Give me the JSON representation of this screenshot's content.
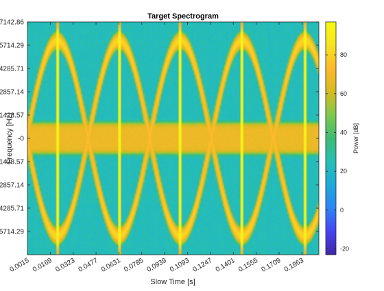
{
  "chart_data": {
    "type": "heatmap",
    "title": "Target Spectrogram",
    "xlabel": "Slow Time [s]",
    "ylabel": "Frequency [Hz]",
    "colorbar_label": "Power [dB]",
    "x_ticks": [
      "0.0015",
      "0.0169",
      "0.0323",
      "0.0477",
      "0.0631",
      "0.0785",
      "0.0939",
      "0.1093",
      "0.1247",
      "0.1401",
      "0.1555",
      "0.1709",
      "0.1863"
    ],
    "y_ticks": [
      "7142.86",
      "5714.29",
      "4285.71",
      "2857.14",
      "1428.57",
      "-0",
      "-1428.57",
      "-2857.14",
      "-4285.71",
      "-5714.29"
    ],
    "colorbar_ticks": [
      "80",
      "60",
      "40",
      "20",
      "0",
      "-20"
    ],
    "colorbar_values": [
      80,
      60,
      40,
      20,
      0,
      -20
    ],
    "clim": [
      -23,
      97
    ],
    "xlim": [
      0.0015,
      0.1977
    ],
    "ylim": [
      -7142.86,
      7142.86
    ],
    "colormap": "parula",
    "flash_times_s": [
      0.0216,
      0.0632,
      0.1045,
      0.146,
      0.1882
    ],
    "sweep_period_s": 0.0415,
    "micro_doppler_peak_hz": 6000,
    "body_band_hz": 1000,
    "peak_power_db": 92,
    "noise_floor_db": 22
  },
  "colors": {
    "axis": "#262626",
    "grid": "#dcdcdc",
    "colormap_stops": [
      "#3e26a8",
      "#4743f3",
      "#2d85f6",
      "#1ea9da",
      "#26bfb5",
      "#3cbb73",
      "#7fc94e",
      "#d5bb21",
      "#feb82c",
      "#f5e41f",
      "#f9fb0e"
    ]
  }
}
